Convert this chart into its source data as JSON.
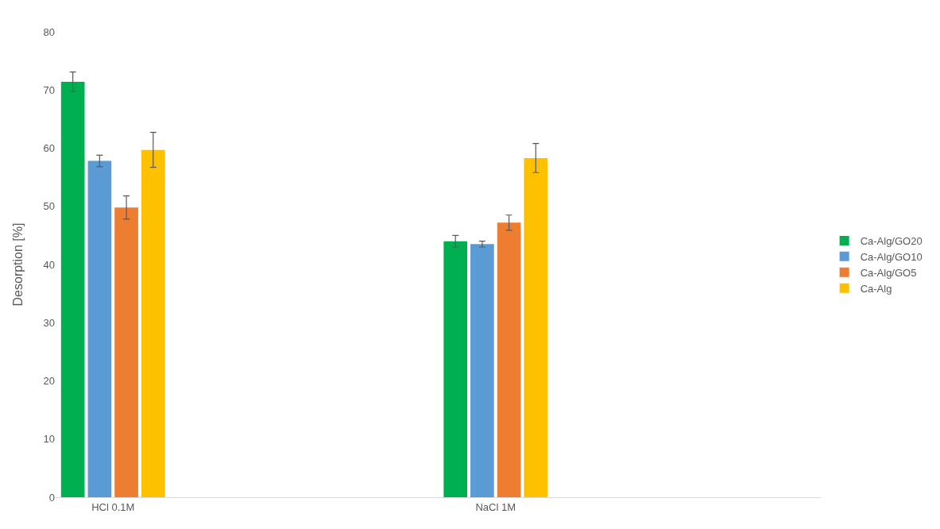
{
  "chart_data": {
    "type": "bar",
    "ylabel": "Desorption [%]",
    "categories": [
      "HCl 0.1M",
      "NaCl 1M"
    ],
    "series": [
      {
        "name": "Ca-Alg/GO20",
        "color": "#00b050",
        "values": [
          71.4,
          44
        ],
        "errors": [
          1.7,
          1
        ]
      },
      {
        "name": "Ca-Alg/GO10",
        "color": "#5b9bd5",
        "values": [
          57.8,
          43.5
        ],
        "errors": [
          1,
          0.5
        ]
      },
      {
        "name": "Ca-Alg/GO5",
        "color": "#ed7d31",
        "values": [
          49.8,
          47.2
        ],
        "errors": [
          2,
          1.3
        ]
      },
      {
        "name": "Ca-Alg",
        "color": "#ffc000",
        "values": [
          59.7,
          58.3
        ],
        "errors": [
          3,
          2.5
        ]
      }
    ],
    "ylim": [
      0,
      80
    ],
    "yticks": [
      0,
      10,
      20,
      30,
      40,
      50,
      60,
      70,
      80
    ],
    "grid": false,
    "legend": "right"
  }
}
